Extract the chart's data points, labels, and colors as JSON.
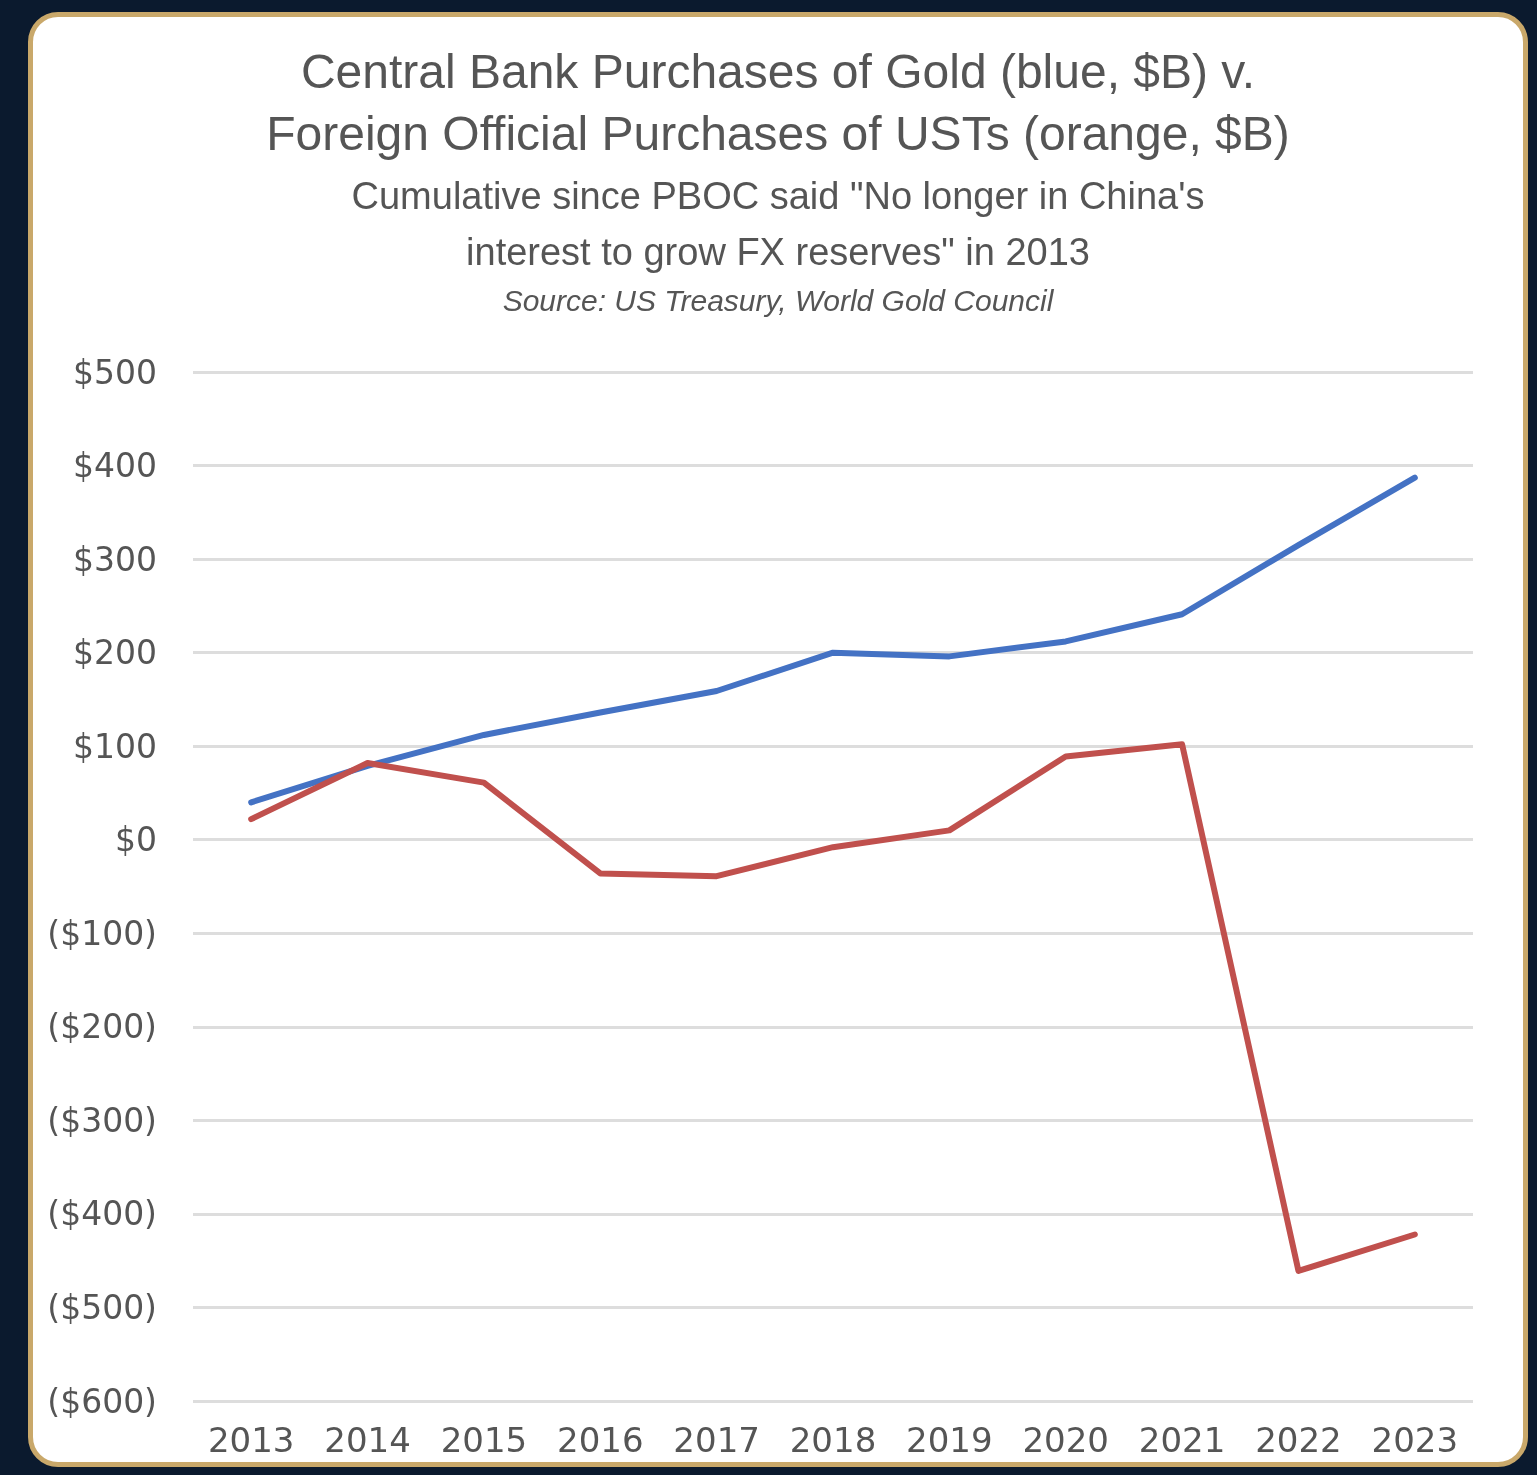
{
  "chart_data": {
    "type": "line",
    "title": "Central Bank Purchases of Gold (blue, $B) v.\nForeign Official Purchases of USTs (orange, $B)",
    "subtitle": "Cumulative since PBOC said \"No longer in China's\ninterest to grow FX reserves\" in 2013",
    "annotations": [
      "Source: US Treasury, World Gold Council"
    ],
    "categories": [
      "2013",
      "2014",
      "2015",
      "2016",
      "2017",
      "2018",
      "2019",
      "2020",
      "2021",
      "2022",
      "2023"
    ],
    "series": [
      {
        "color": "#4472c4",
        "values": [
          40,
          79,
          112,
          136,
          159,
          200,
          196,
          212,
          241,
          315,
          387
        ]
      },
      {
        "color": "#c0504d",
        "values": [
          22,
          82,
          61,
          -36,
          -39,
          -8,
          10,
          89,
          102,
          -461,
          -422
        ]
      }
    ],
    "ylim": [
      -600,
      500
    ],
    "yticks": [
      {
        "value": -600,
        "label": "($600)"
      },
      {
        "value": -500,
        "label": "($500)"
      },
      {
        "value": -400,
        "label": "($400)"
      },
      {
        "value": -300,
        "label": "($300)"
      },
      {
        "value": -200,
        "label": "($200)"
      },
      {
        "value": -100,
        "label": "($100)"
      },
      {
        "value": 0,
        "label": "$0"
      },
      {
        "value": 100,
        "label": "$100"
      },
      {
        "value": 200,
        "label": "$200"
      },
      {
        "value": 300,
        "label": "$300"
      },
      {
        "value": 400,
        "label": "$400"
      },
      {
        "value": 500,
        "label": "$500"
      }
    ],
    "grid": "y",
    "marker": "none",
    "line_style": "solid"
  }
}
